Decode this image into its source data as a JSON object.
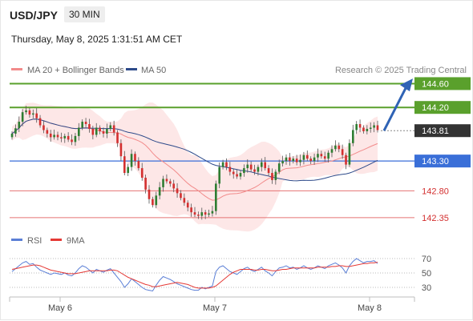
{
  "header": {
    "symbol": "USD/JPY",
    "timeframe": "30 MIN",
    "datetime": "Thursday, May 8, 2025 1:31:51 AM CET"
  },
  "legend": {
    "ma20": "MA 20 + Bollinger Bands",
    "ma50": "MA 50",
    "credit": "Research © 2025 Trading Central"
  },
  "rsi_legend": {
    "rsi": "RSI",
    "ma": "9MA"
  },
  "colors": {
    "up": "#2e7d32",
    "down": "#d32f2f",
    "resistance": "#5aa02c",
    "pivot": "#3a6fd8",
    "support": "#e57373",
    "band": "#fde4e4",
    "ma20": "#f28b8b",
    "ma50": "#2d4a8a",
    "rsi": "#5b7fd6",
    "rsi_ma": "#e53935",
    "arrow": "#2f63b5",
    "current_bg": "#333333"
  },
  "chart_data": [
    {
      "type": "candlestick",
      "y_range": [
        142.2,
        144.7
      ],
      "x_ticks": [
        "May 6",
        "May 7",
        "May 8"
      ],
      "levels": [
        {
          "value": 144.6,
          "label": "144.60",
          "kind": "resistance"
        },
        {
          "value": 144.2,
          "label": "144.20",
          "kind": "resistance"
        },
        {
          "value": 143.81,
          "label": "143.81",
          "kind": "current"
        },
        {
          "value": 143.3,
          "label": "143.30",
          "kind": "pivot"
        },
        {
          "value": 142.8,
          "label": "142.80",
          "kind": "support"
        },
        {
          "value": 142.35,
          "label": "142.35",
          "kind": "support"
        }
      ],
      "closes": [
        143.76,
        143.85,
        143.96,
        144.12,
        144.15,
        144.08,
        144.1,
        144.02,
        143.9,
        143.82,
        143.76,
        143.7,
        143.74,
        143.7,
        143.68,
        143.72,
        143.66,
        143.62,
        143.72,
        143.86,
        143.96,
        143.92,
        143.84,
        143.74,
        143.86,
        143.8,
        143.76,
        143.84,
        143.9,
        143.78,
        143.6,
        143.38,
        143.1,
        143.2,
        143.42,
        143.3,
        143.18,
        143.02,
        142.82,
        142.66,
        142.56,
        142.72,
        142.86,
        143.0,
        142.96,
        142.92,
        142.84,
        142.76,
        142.68,
        142.6,
        142.52,
        142.44,
        142.4,
        142.38,
        142.44,
        142.4,
        142.42,
        142.46,
        142.92,
        143.2,
        143.28,
        143.2,
        143.12,
        143.08,
        143.04,
        143.1,
        143.18,
        143.24,
        143.16,
        143.12,
        143.2,
        143.28,
        143.18,
        143.1,
        142.98,
        143.12,
        143.26,
        143.3,
        143.36,
        143.3,
        143.34,
        143.28,
        143.32,
        143.4,
        143.34,
        143.3,
        143.36,
        143.42,
        143.38,
        143.34,
        143.44,
        143.5,
        143.56,
        143.5,
        143.4,
        143.24,
        143.6,
        143.82,
        143.92,
        143.86,
        143.8,
        143.84,
        143.86,
        143.9,
        143.82
      ],
      "ma20_label_note": "",
      "rsi_panel": {
        "levels": [
          70,
          50,
          30
        ],
        "y_range": [
          20,
          80
        ],
        "rsi": [
          52,
          56,
          60,
          64,
          66,
          62,
          63,
          58,
          54,
          52,
          50,
          48,
          50,
          49,
          48,
          50,
          47,
          46,
          50,
          56,
          60,
          58,
          54,
          50,
          55,
          53,
          51,
          54,
          56,
          50,
          44,
          38,
          30,
          35,
          42,
          38,
          34,
          30,
          27,
          26,
          25,
          33,
          40,
          45,
          43,
          41,
          38,
          35,
          33,
          31,
          29,
          27,
          26,
          26,
          30,
          28,
          30,
          32,
          52,
          58,
          60,
          56,
          52,
          50,
          48,
          52,
          56,
          58,
          54,
          52,
          55,
          58,
          53,
          50,
          46,
          52,
          57,
          58,
          60,
          57,
          58,
          55,
          57,
          60,
          57,
          55,
          57,
          60,
          58,
          56,
          60,
          62,
          64,
          61,
          57,
          50,
          60,
          66,
          70,
          67,
          64,
          66,
          66,
          67,
          63
        ],
        "rsi_ma": [
          55,
          56,
          57,
          58,
          59,
          60,
          61,
          61,
          60,
          58,
          56,
          54,
          53,
          52,
          51,
          50,
          49,
          49,
          49,
          50,
          51,
          52,
          53,
          53,
          53,
          53,
          53,
          53,
          54,
          54,
          53,
          50,
          47,
          44,
          42,
          40,
          38,
          36,
          34,
          33,
          31,
          31,
          32,
          33,
          34,
          35,
          36,
          37,
          36,
          35,
          34,
          32,
          30,
          29,
          29,
          29,
          29,
          30,
          32,
          36,
          40,
          44,
          48,
          51,
          53,
          55,
          55,
          55,
          55,
          54,
          54,
          55,
          55,
          54,
          53,
          53,
          54,
          55,
          55,
          56,
          57,
          57,
          57,
          57,
          57,
          57,
          57,
          58,
          58,
          58,
          58,
          59,
          59,
          60,
          60,
          59,
          59,
          60,
          61,
          62,
          63,
          63,
          64,
          64,
          65
        ]
      }
    }
  ]
}
